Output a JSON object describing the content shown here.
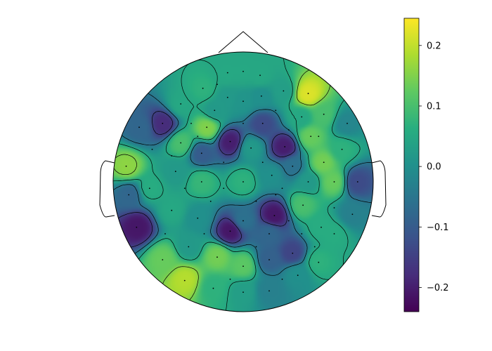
{
  "chart_data": {
    "type": "heatmap",
    "subtype": "eeg-topomap",
    "title": "",
    "colormap": "viridis",
    "colormap_stops": [
      "#440154",
      "#472d7b",
      "#3b528b",
      "#2c728e",
      "#21918c",
      "#28ae80",
      "#5ec962",
      "#addc30",
      "#fde725"
    ],
    "colorbar": {
      "vmin": -0.24,
      "vmax": 0.245,
      "ticks": [
        0.2,
        0.1,
        0.0,
        -0.1,
        -0.2
      ],
      "tick_labels": [
        "0.2",
        "0.1",
        "0.0",
        "−0.1",
        "−0.2"
      ]
    },
    "head_outline": {
      "nose": true,
      "ears": true,
      "contours": true,
      "sensor_markers": true
    },
    "sensors": [
      {
        "x": -0.12,
        "y": 0.84,
        "v": 0.05
      },
      {
        "x": 0.0,
        "y": 0.85,
        "v": 0.05
      },
      {
        "x": 0.13,
        "y": 0.82,
        "v": 0.05
      },
      {
        "x": -0.31,
        "y": 0.72,
        "v": 0.07
      },
      {
        "x": -0.12,
        "y": 0.65,
        "v": 0.02
      },
      {
        "x": 0.0,
        "y": 0.62,
        "v": 0.01
      },
      {
        "x": 0.14,
        "y": 0.66,
        "v": 0.0
      },
      {
        "x": 0.31,
        "y": 0.7,
        "v": 0.03
      },
      {
        "x": 0.5,
        "y": 0.68,
        "v": 0.22
      },
      {
        "x": 0.62,
        "y": 0.52,
        "v": 0.1
      },
      {
        "x": 0.52,
        "y": 0.35,
        "v": 0.13
      },
      {
        "x": 0.76,
        "y": 0.25,
        "v": 0.07
      },
      {
        "x": 0.88,
        "y": 0.0,
        "v": -0.13
      },
      {
        "x": 0.84,
        "y": -0.25,
        "v": -0.03
      },
      {
        "x": 0.7,
        "y": -0.4,
        "v": 0.06
      },
      {
        "x": 0.58,
        "y": -0.62,
        "v": 0.07
      },
      {
        "x": 0.42,
        "y": -0.72,
        "v": 0.0
      },
      {
        "x": 0.2,
        "y": -0.84,
        "v": -0.03
      },
      {
        "x": 0.0,
        "y": -0.85,
        "v": 0.03
      },
      {
        "x": -0.23,
        "y": -0.82,
        "v": 0.07
      },
      {
        "x": -0.45,
        "y": -0.76,
        "v": 0.19
      },
      {
        "x": -0.62,
        "y": -0.6,
        "v": 0.13
      },
      {
        "x": -0.82,
        "y": -0.35,
        "v": -0.21
      },
      {
        "x": -0.88,
        "y": -0.1,
        "v": -0.08
      },
      {
        "x": -0.9,
        "y": 0.12,
        "v": 0.16
      },
      {
        "x": -0.8,
        "y": 0.42,
        "v": -0.08
      },
      {
        "x": -0.62,
        "y": 0.45,
        "v": -0.18
      },
      {
        "x": -0.48,
        "y": 0.3,
        "v": 0.1
      },
      {
        "x": -0.28,
        "y": 0.42,
        "v": 0.15
      },
      {
        "x": -0.32,
        "y": 0.22,
        "v": -0.1
      },
      {
        "x": -0.1,
        "y": 0.31,
        "v": -0.2
      },
      {
        "x": 0.06,
        "y": 0.26,
        "v": 0.02
      },
      {
        "x": 0.32,
        "y": 0.27,
        "v": -0.2
      },
      {
        "x": 0.38,
        "y": 0.12,
        "v": -0.06
      },
      {
        "x": 0.22,
        "y": 0.05,
        "v": 0.0
      },
      {
        "x": 0.0,
        "y": 0.0,
        "v": 0.07
      },
      {
        "x": -0.32,
        "y": 0.0,
        "v": 0.08
      },
      {
        "x": -0.52,
        "y": 0.08,
        "v": 0.02
      },
      {
        "x": 0.5,
        "y": 0.0,
        "v": 0.02
      },
      {
        "x": 0.7,
        "y": 0.0,
        "v": 0.13
      },
      {
        "x": 0.46,
        "y": -0.18,
        "v": 0.1
      },
      {
        "x": 0.24,
        "y": -0.26,
        "v": -0.21
      },
      {
        "x": -0.1,
        "y": -0.38,
        "v": -0.21
      },
      {
        "x": -0.35,
        "y": -0.28,
        "v": 0.0
      },
      {
        "x": -0.55,
        "y": -0.22,
        "v": 0.05
      },
      {
        "x": 0.0,
        "y": -0.3,
        "v": -0.06
      },
      {
        "x": -0.2,
        "y": -0.58,
        "v": 0.14
      },
      {
        "x": 0.0,
        "y": -0.65,
        "v": 0.12
      },
      {
        "x": 0.2,
        "y": -0.6,
        "v": -0.09
      },
      {
        "x": 0.38,
        "y": -0.55,
        "v": -0.14
      },
      {
        "x": 0.2,
        "y": -0.4,
        "v": -0.08
      },
      {
        "x": -0.42,
        "y": -0.5,
        "v": 0.02
      },
      {
        "x": 0.6,
        "y": -0.35,
        "v": 0.06
      },
      {
        "x": 0.15,
        "y": 0.45,
        "v": -0.13
      },
      {
        "x": 0.45,
        "y": 0.5,
        "v": 0.05
      },
      {
        "x": -0.48,
        "y": 0.6,
        "v": 0.05
      },
      {
        "x": -0.72,
        "y": -0.05,
        "v": 0.06
      },
      {
        "x": 0.62,
        "y": 0.15,
        "v": 0.14
      },
      {
        "x": 0.8,
        "y": 0.45,
        "v": -0.02
      },
      {
        "x": -0.22,
        "y": 0.55,
        "v": 0.02
      }
    ],
    "markers_only": [
      {
        "x": -0.2,
        "y": 0.75
      },
      {
        "x": 0.25,
        "y": 0.55
      },
      {
        "x": -0.4,
        "y": 0.45
      },
      {
        "x": 0.0,
        "y": 0.45
      },
      {
        "x": 0.35,
        "y": 0.4
      },
      {
        "x": -0.15,
        "y": 0.15
      },
      {
        "x": 0.15,
        "y": 0.15
      },
      {
        "x": 0.3,
        "y": -0.05
      },
      {
        "x": -0.15,
        "y": -0.05
      },
      {
        "x": -0.45,
        "y": -0.05
      },
      {
        "x": 0.1,
        "y": -0.15
      },
      {
        "x": -0.25,
        "y": -0.15
      },
      {
        "x": 0.35,
        "y": -0.3
      },
      {
        "x": -0.3,
        "y": -0.4
      },
      {
        "x": 0.1,
        "y": -0.5
      },
      {
        "x": -0.1,
        "y": -0.75
      },
      {
        "x": 0.3,
        "y": -0.75
      },
      {
        "x": 0.55,
        "y": -0.5
      },
      {
        "x": -0.6,
        "y": -0.4
      },
      {
        "x": -0.7,
        "y": 0.25
      },
      {
        "x": 0.7,
        "y": -0.2
      },
      {
        "x": 0.58,
        "y": 0.35
      },
      {
        "x": -0.55,
        "y": 0.2
      },
      {
        "x": 0.45,
        "y": -0.4
      },
      {
        "x": -0.35,
        "y": 0.35
      },
      {
        "x": 0.25,
        "y": -0.1
      }
    ]
  }
}
